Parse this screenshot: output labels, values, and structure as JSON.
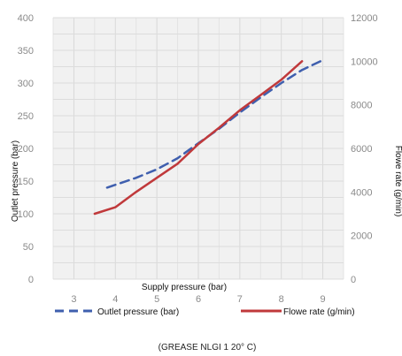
{
  "chart_data": {
    "type": "line",
    "caption": "(GREASE NLGI 1 20° C)",
    "xlabel": "Supply pressure (bar)",
    "ylabel_left": "Outlet pressure (bar)",
    "ylabel_right": "Flowe rate (g/min)",
    "xlim": [
      2.5,
      9.5
    ],
    "ylim_left": [
      0,
      400
    ],
    "ylim_right": [
      0,
      12000
    ],
    "x_ticks": [
      3,
      4,
      5,
      6,
      7,
      8,
      9
    ],
    "y_left_ticks": [
      0,
      50,
      100,
      150,
      200,
      250,
      300,
      350,
      400
    ],
    "y_right_ticks": [
      0,
      2000,
      4000,
      6000,
      8000,
      10000,
      12000
    ],
    "grid": true,
    "legend_position": "bottom",
    "series": [
      {
        "name": "Outlet pressure (bar)",
        "axis": "left",
        "style": "dashed",
        "color": "#3f5fae",
        "x": [
          3.8,
          4.5,
          5.0,
          5.5,
          6.0,
          6.5,
          7.0,
          7.5,
          8.0,
          8.5,
          9.0
        ],
        "y": [
          140,
          155,
          168,
          185,
          208,
          230,
          255,
          278,
          300,
          320,
          335
        ]
      },
      {
        "name": "Flowe rate (g/min)",
        "axis": "right",
        "style": "solid",
        "color": "#c0393b",
        "x": [
          3.5,
          4.0,
          4.5,
          5.0,
          5.5,
          6.0,
          6.5,
          7.0,
          7.5,
          8.0,
          8.5
        ],
        "y": [
          3000,
          3300,
          4000,
          4650,
          5300,
          6200,
          6950,
          7750,
          8450,
          9150,
          10000
        ]
      }
    ]
  }
}
